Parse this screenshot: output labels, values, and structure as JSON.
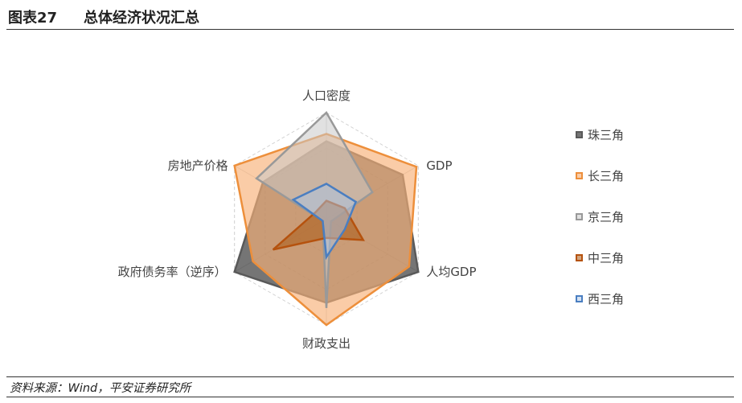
{
  "header": {
    "figure_number": "图表27",
    "title": "总体经济状况汇总"
  },
  "footer": {
    "source": "资料来源：Wind，平安证券研究所"
  },
  "chart_data": {
    "type": "radar",
    "axes": [
      "人口密度",
      "GDP",
      "人均GDP",
      "财政支出",
      "政府债务率（逆序）",
      "房地产价格"
    ],
    "rmax": 100,
    "grid": true,
    "legend_position": "right",
    "series": [
      {
        "name": "珠三角",
        "color": "#595959",
        "fill": "rgba(64,64,64,0.72)",
        "values": [
          73,
          83,
          100,
          79,
          100,
          69
        ]
      },
      {
        "name": "长三角",
        "color": "#ED8F3B",
        "fill": "rgba(247,176,120,0.65)",
        "values": [
          80,
          98,
          90,
          100,
          80,
          100
        ]
      },
      {
        "name": "京三角",
        "color": "#999999",
        "fill": "rgba(200,200,200,0.55)",
        "values": [
          100,
          50,
          5,
          84,
          4,
          76
        ]
      },
      {
        "name": "中三角",
        "color": "#B5520E",
        "fill": "rgba(170,90,20,0.55)",
        "values": [
          17,
          20,
          40,
          18,
          58,
          12
        ]
      },
      {
        "name": "西三角",
        "color": "#4A7EC1",
        "fill": "rgba(170,195,230,0.5)",
        "values": [
          33,
          32,
          20,
          36,
          4,
          36
        ]
      }
    ]
  }
}
